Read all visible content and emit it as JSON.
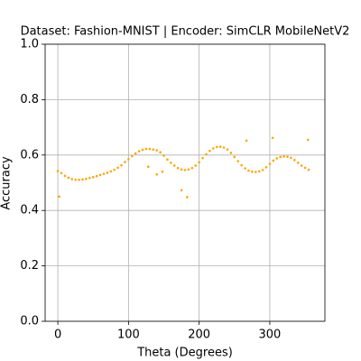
{
  "chart_data": {
    "type": "scatter",
    "title": "Dataset: Fashion-MNIST | Encoder: SimCLR MobileNetV2",
    "xlabel": "Theta (Degrees)",
    "ylabel": "Accuracy",
    "color": "#ffa500",
    "grid": true,
    "xlim": [
      -18,
      378
    ],
    "ylim": [
      0,
      1
    ],
    "xticks": [
      0,
      100,
      200,
      300
    ],
    "yticks": [
      {
        "value": 0,
        "label": "0.0"
      },
      0.2,
      0.4,
      0.6,
      0.8,
      {
        "value": 1,
        "label": "1.0"
      }
    ],
    "x": [
      0,
      5,
      10,
      15,
      20,
      25,
      30,
      35,
      40,
      45,
      50,
      55,
      60,
      65,
      70,
      75,
      80,
      85,
      90,
      95,
      100,
      105,
      110,
      115,
      120,
      125,
      130,
      135,
      140,
      145,
      150,
      155,
      160,
      165,
      170,
      175,
      180,
      185,
      190,
      195,
      200,
      205,
      210,
      215,
      220,
      225,
      230,
      235,
      240,
      245,
      250,
      255,
      260,
      265,
      270,
      275,
      280,
      285,
      290,
      295,
      300,
      305,
      310,
      315,
      320,
      325,
      330,
      335,
      340,
      345,
      350,
      355,
      2,
      128,
      140,
      148,
      175,
      183,
      267,
      304,
      354
    ],
    "values": [
      0.542,
      0.535,
      0.525,
      0.518,
      0.513,
      0.511,
      0.511,
      0.512,
      0.514,
      0.517,
      0.52,
      0.524,
      0.528,
      0.532,
      0.536,
      0.541,
      0.547,
      0.554,
      0.563,
      0.575,
      0.585,
      0.596,
      0.606,
      0.614,
      0.619,
      0.622,
      0.622,
      0.62,
      0.617,
      0.61,
      0.598,
      0.584,
      0.572,
      0.562,
      0.553,
      0.548,
      0.546,
      0.548,
      0.553,
      0.562,
      0.574,
      0.589,
      0.603,
      0.615,
      0.624,
      0.629,
      0.63,
      0.627,
      0.62,
      0.608,
      0.593,
      0.578,
      0.563,
      0.552,
      0.544,
      0.54,
      0.539,
      0.541,
      0.546,
      0.556,
      0.568,
      0.58,
      0.588,
      0.593,
      0.595,
      0.594,
      0.59,
      0.582,
      0.572,
      0.562,
      0.554,
      0.547,
      0.45,
      0.558,
      0.53,
      0.54,
      0.473,
      0.448,
      0.652,
      0.662,
      0.655
    ]
  }
}
